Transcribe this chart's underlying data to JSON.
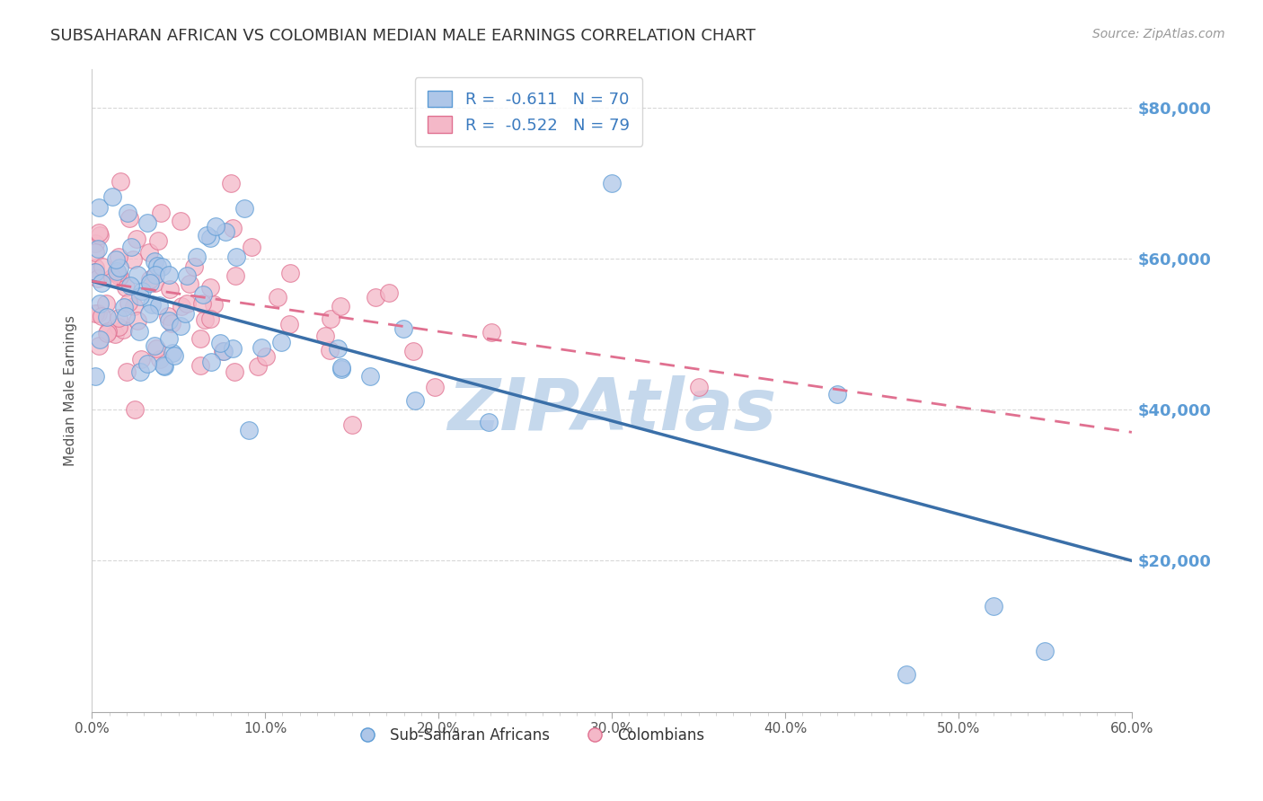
{
  "title": "SUBSAHARAN AFRICAN VS COLOMBIAN MEDIAN MALE EARNINGS CORRELATION CHART",
  "source": "Source: ZipAtlas.com",
  "ylabel": "Median Male Earnings",
  "ytick_labels": [
    "$20,000",
    "$40,000",
    "$60,000",
    "$80,000"
  ],
  "ytick_values": [
    20000,
    40000,
    60000,
    80000
  ],
  "xlim": [
    0.0,
    0.6
  ],
  "ylim": [
    0,
    85000
  ],
  "blue_color": "#aec6e8",
  "blue_edge_color": "#5b9bd5",
  "pink_color": "#f4b8c8",
  "pink_edge_color": "#e07090",
  "blue_line_color": "#3a6fa8",
  "pink_line_color": "#e07090",
  "legend_blue_label": "R =  -0.611   N = 70",
  "legend_pink_label": "R =  -0.522   N = 79",
  "watermark": "ZIPAtlas",
  "watermark_color": "#c5d8ec",
  "background_color": "#ffffff",
  "grid_color": "#d8d8d8",
  "title_color": "#333333",
  "source_color": "#999999",
  "tick_color": "#555555",
  "ylabel_color": "#555555"
}
